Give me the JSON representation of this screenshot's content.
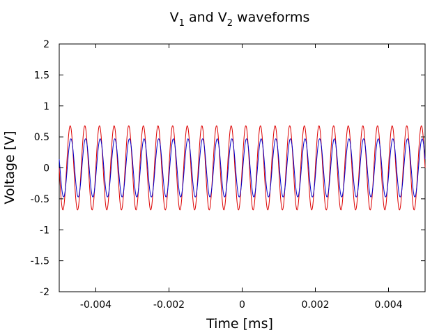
{
  "chart_data": {
    "type": "line",
    "title": {
      "parts": [
        {
          "text": "V",
          "sub": false
        },
        {
          "text": "1",
          "sub": true
        },
        {
          "text": " and V",
          "sub": false
        },
        {
          "text": "2",
          "sub": true
        },
        {
          "text": " waveforms",
          "sub": false
        }
      ]
    },
    "xlabel": "Time [ms]",
    "ylabel": "Voltage [V]",
    "xlim": [
      -0.005,
      0.005
    ],
    "ylim": [
      -2,
      2
    ],
    "xticks": [
      -0.004,
      -0.002,
      0,
      0.002,
      0.004
    ],
    "xtick_labels": [
      "-0.004",
      "-0.002",
      "0",
      "0.002",
      "0.004"
    ],
    "yticks": [
      -2,
      -1.5,
      -1,
      -0.5,
      0,
      0.5,
      1,
      1.5,
      2
    ],
    "ytick_labels": [
      "-2",
      "-1.5",
      "-1",
      "-0.5",
      "0",
      "0.5",
      "1",
      "1.5",
      "2"
    ],
    "grid": false,
    "series": [
      {
        "color": "#dd0000",
        "function": "sine",
        "amplitude": 0.68,
        "frequency": 2500,
        "phase": 0
      },
      {
        "color": "#0000cc",
        "function": "sine",
        "amplitude": 0.47,
        "frequency": 2500,
        "phase": -0.3
      }
    ]
  }
}
